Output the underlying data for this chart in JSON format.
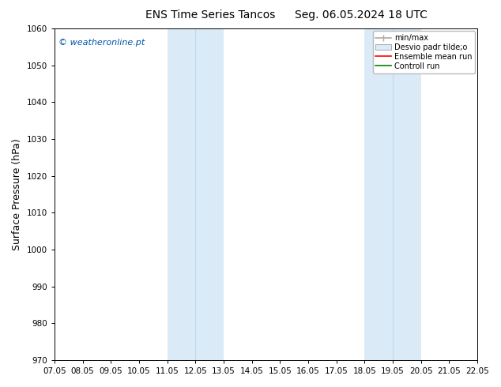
{
  "title_left": "ENS Time Series Tancos",
  "title_right": "Seg. 06.05.2024 18 UTC",
  "ylabel": "Surface Pressure (hPa)",
  "ylim": [
    970,
    1060
  ],
  "yticks": [
    970,
    980,
    990,
    1000,
    1010,
    1020,
    1030,
    1040,
    1050,
    1060
  ],
  "xlim": [
    7,
    22
  ],
  "xtick_positions": [
    7,
    8,
    9,
    10,
    11,
    12,
    13,
    14,
    15,
    16,
    17,
    18,
    19,
    20,
    21,
    22
  ],
  "xtick_labels": [
    "07.05",
    "08.05",
    "09.05",
    "10.05",
    "11.05",
    "12.05",
    "13.05",
    "14.05",
    "15.05",
    "16.05",
    "17.05",
    "18.05",
    "19.05",
    "20.05",
    "21.05",
    "22.05"
  ],
  "shaded_bands": [
    {
      "xstart": 11.0,
      "xend": 13.0,
      "color": "#daeaf7"
    },
    {
      "xstart": 18.0,
      "xend": 20.0,
      "color": "#daeaf7"
    }
  ],
  "vlines": [
    12.0,
    19.0
  ],
  "vline_color": "#c0d8ee",
  "watermark": "© weatheronline.pt",
  "watermark_color": "#0055aa",
  "bg_color": "#ffffff",
  "plot_bg_color": "#ffffff",
  "legend_labels": [
    "min/max",
    "Desvio padr tilde;o",
    "Ensemble mean run",
    "Controll run"
  ],
  "legend_line_colors": [
    "#aaaaaa",
    "#cccccc",
    "#ff0000",
    "#008000"
  ],
  "title_fontsize": 10,
  "tick_fontsize": 7.5,
  "ylabel_fontsize": 9,
  "watermark_fontsize": 8
}
